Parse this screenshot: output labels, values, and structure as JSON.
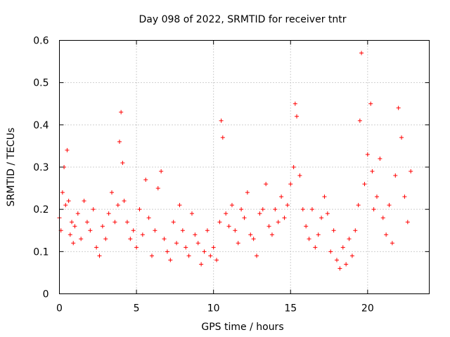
{
  "chart_data": {
    "type": "scatter",
    "title": "Day 098 of 2022, SRMTID for receiver tntr",
    "xlabel": "GPS time / hours",
    "ylabel": "SRMTID / TECUs",
    "xlim": [
      0,
      24
    ],
    "ylim": [
      0,
      0.6
    ],
    "xticks": [
      0,
      5,
      10,
      15,
      20
    ],
    "xtick_labels": [
      "0",
      "5",
      "10",
      "15",
      "20"
    ],
    "yticks": [
      0,
      0.1,
      0.2,
      0.3,
      0.4,
      0.5,
      0.6
    ],
    "ytick_labels": [
      "0",
      "0.1",
      "0.2",
      "0.3",
      "0.4",
      "0.5",
      "0.6"
    ],
    "grid": true,
    "marker": "plus",
    "color": "#ff0000",
    "series": [
      {
        "name": "SRMTID",
        "x": [
          0.0,
          0.1,
          0.2,
          0.3,
          0.4,
          0.5,
          0.6,
          0.7,
          0.8,
          0.9,
          1.0,
          1.2,
          1.4,
          1.6,
          1.8,
          2.0,
          2.2,
          2.4,
          2.6,
          2.8,
          3.0,
          3.2,
          3.4,
          3.6,
          3.8,
          3.9,
          4.0,
          4.1,
          4.2,
          4.4,
          4.6,
          4.8,
          5.0,
          5.2,
          5.4,
          5.6,
          5.8,
          6.0,
          6.2,
          6.4,
          6.6,
          6.8,
          7.0,
          7.2,
          7.4,
          7.6,
          7.8,
          8.0,
          8.2,
          8.4,
          8.6,
          8.8,
          9.0,
          9.2,
          9.4,
          9.6,
          9.8,
          10.0,
          10.2,
          10.4,
          10.5,
          10.6,
          10.8,
          11.0,
          11.2,
          11.4,
          11.6,
          11.8,
          12.0,
          12.2,
          12.4,
          12.6,
          12.8,
          13.0,
          13.2,
          13.4,
          13.6,
          13.8,
          14.0,
          14.2,
          14.4,
          14.6,
          14.8,
          15.0,
          15.2,
          15.3,
          15.4,
          15.6,
          15.8,
          16.0,
          16.2,
          16.4,
          16.6,
          16.8,
          17.0,
          17.2,
          17.4,
          17.6,
          17.8,
          18.0,
          18.2,
          18.4,
          18.6,
          18.8,
          19.0,
          19.2,
          19.4,
          19.5,
          19.6,
          19.8,
          20.0,
          20.2,
          20.3,
          20.4,
          20.6,
          20.8,
          21.0,
          21.2,
          21.4,
          21.6,
          21.8,
          22.0,
          22.2,
          22.4,
          22.6,
          22.8
        ],
        "y": [
          0.18,
          0.15,
          0.24,
          0.3,
          0.21,
          0.34,
          0.22,
          0.14,
          0.17,
          0.12,
          0.16,
          0.19,
          0.13,
          0.22,
          0.17,
          0.15,
          0.2,
          0.11,
          0.09,
          0.16,
          0.13,
          0.19,
          0.24,
          0.17,
          0.21,
          0.36,
          0.43,
          0.31,
          0.22,
          0.17,
          0.13,
          0.15,
          0.11,
          0.2,
          0.14,
          0.27,
          0.18,
          0.09,
          0.15,
          0.25,
          0.29,
          0.13,
          0.1,
          0.08,
          0.17,
          0.12,
          0.21,
          0.15,
          0.11,
          0.09,
          0.19,
          0.14,
          0.12,
          0.07,
          0.1,
          0.15,
          0.09,
          0.11,
          0.08,
          0.17,
          0.41,
          0.37,
          0.19,
          0.16,
          0.21,
          0.15,
          0.12,
          0.2,
          0.18,
          0.24,
          0.14,
          0.13,
          0.09,
          0.19,
          0.2,
          0.26,
          0.16,
          0.14,
          0.2,
          0.17,
          0.23,
          0.18,
          0.21,
          0.26,
          0.3,
          0.45,
          0.42,
          0.28,
          0.2,
          0.16,
          0.13,
          0.2,
          0.11,
          0.14,
          0.18,
          0.23,
          0.19,
          0.1,
          0.15,
          0.08,
          0.06,
          0.11,
          0.07,
          0.13,
          0.09,
          0.15,
          0.21,
          0.41,
          0.57,
          0.26,
          0.33,
          0.45,
          0.29,
          0.2,
          0.23,
          0.32,
          0.18,
          0.14,
          0.21,
          0.12,
          0.28,
          0.44,
          0.37,
          0.23,
          0.17,
          0.29
        ]
      }
    ]
  }
}
